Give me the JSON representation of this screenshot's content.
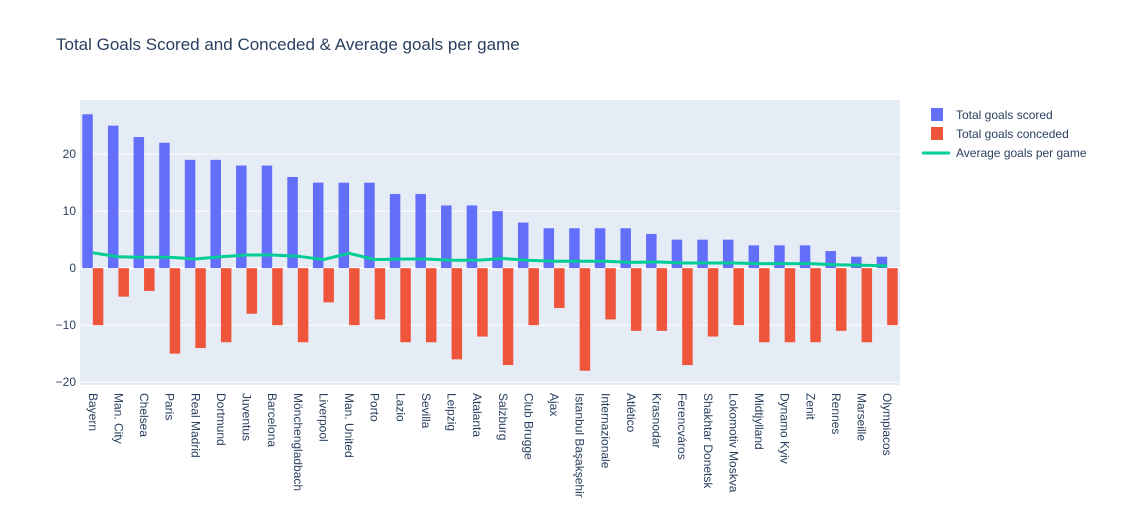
{
  "chart_data": {
    "type": "bar",
    "title": "Total Goals Scored and Conceded & Average goals per game",
    "categories": [
      "Bayern",
      "Man. City",
      "Chelsea",
      "Paris",
      "Real Madrid",
      "Dortmund",
      "Juventus",
      "Barcelona",
      "Mönchengladbach",
      "Liverpool",
      "Man. United",
      "Porto",
      "Lazio",
      "Sevilla",
      "Leipzig",
      "Atalanta",
      "Salzburg",
      "Club Brugge",
      "Ajax",
      "Istanbul Başakşehir",
      "Internazionale",
      "Atlético",
      "Krasnodar",
      "Ferencváros",
      "Shakhtar Donetsk",
      "Lokomotiv Moskva",
      "Midtjylland",
      "Dynamo Kyiv",
      "Zenit",
      "Rennes",
      "Marseille",
      "Olympiacos"
    ],
    "series": [
      {
        "name": "Total goals scored",
        "type": "bar",
        "color": "#636efa",
        "values": [
          27,
          25,
          23,
          22,
          19,
          19,
          18,
          18,
          16,
          15,
          15,
          15,
          13,
          13,
          11,
          11,
          10,
          8,
          7,
          7,
          7,
          7,
          6,
          5,
          5,
          5,
          4,
          4,
          4,
          3,
          2,
          2
        ]
      },
      {
        "name": "Total goals conceded",
        "type": "bar",
        "color": "#ef553b",
        "values": [
          -10,
          -5,
          -4,
          -15,
          -14,
          -13,
          -8,
          -10,
          -13,
          -6,
          -10,
          -9,
          -13,
          -13,
          -16,
          -12,
          -17,
          -10,
          -7,
          -18,
          -9,
          -11,
          -11,
          -17,
          -12,
          -10,
          -13,
          -13,
          -13,
          -11,
          -13,
          -10
        ]
      },
      {
        "name": "Average goals per game",
        "type": "line",
        "color": "#00cc96",
        "values": [
          2.7,
          2.0,
          1.9,
          1.9,
          1.6,
          2.0,
          2.3,
          2.3,
          2.1,
          1.5,
          2.6,
          1.5,
          1.6,
          1.6,
          1.4,
          1.4,
          1.7,
          1.4,
          1.2,
          1.2,
          1.2,
          1.0,
          1.1,
          0.9,
          0.9,
          0.9,
          0.8,
          0.8,
          0.8,
          0.6,
          0.5,
          0.4
        ]
      }
    ],
    "ylim": [
      -20.5,
      29.5
    ],
    "yticks": [
      -20,
      -10,
      0,
      10,
      20
    ],
    "grid": true,
    "legend_position": "top-right"
  }
}
